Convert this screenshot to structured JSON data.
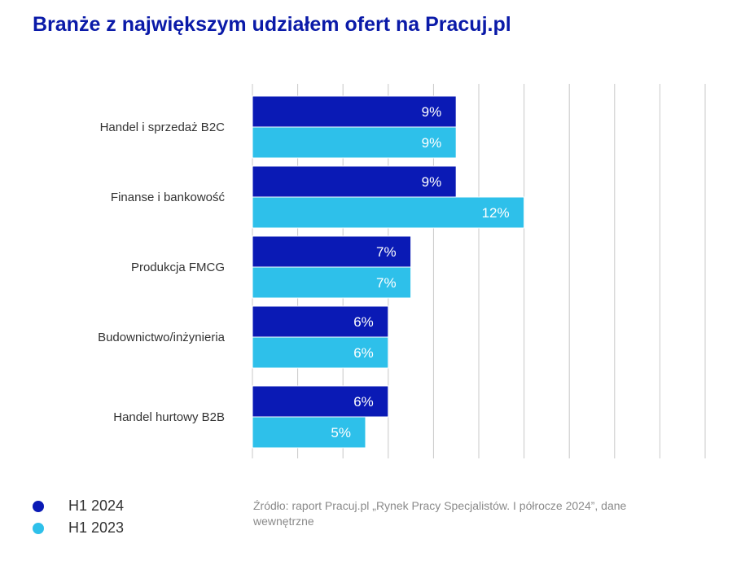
{
  "title": "Branże z największym udziałem ofert na Pracuj.pl",
  "chart_data": {
    "type": "bar",
    "orientation": "horizontal",
    "categories": [
      "Handel i sprzedaż B2C",
      "Finanse i bankowość",
      "Produkcja FMCG",
      "Budownictwo/inżynieria",
      "Handel hurtowy B2B"
    ],
    "series": [
      {
        "name": "H1 2024",
        "color": "#0a1ab5",
        "values": [
          9,
          9,
          7,
          6,
          6
        ],
        "labels": [
          "9%",
          "9%",
          "7%",
          "6%",
          "6%"
        ]
      },
      {
        "name": "H1 2023",
        "color": "#2ec0ea",
        "values": [
          9,
          12,
          7,
          6,
          5
        ],
        "labels": [
          "9%",
          "12%",
          "7%",
          "6%",
          "5%"
        ]
      }
    ],
    "xlim": [
      0,
      20
    ],
    "grid": true,
    "legend": "bottom-left"
  },
  "legend": {
    "items": [
      {
        "label": "H1 2024",
        "color": "#0a1ab5"
      },
      {
        "label": "H1 2023",
        "color": "#2ec0ea"
      }
    ]
  },
  "source": "Źródło: raport Pracuj.pl „Rynek Pracy Specjalistów. I półrocze 2024”, dane wewnętrzne"
}
